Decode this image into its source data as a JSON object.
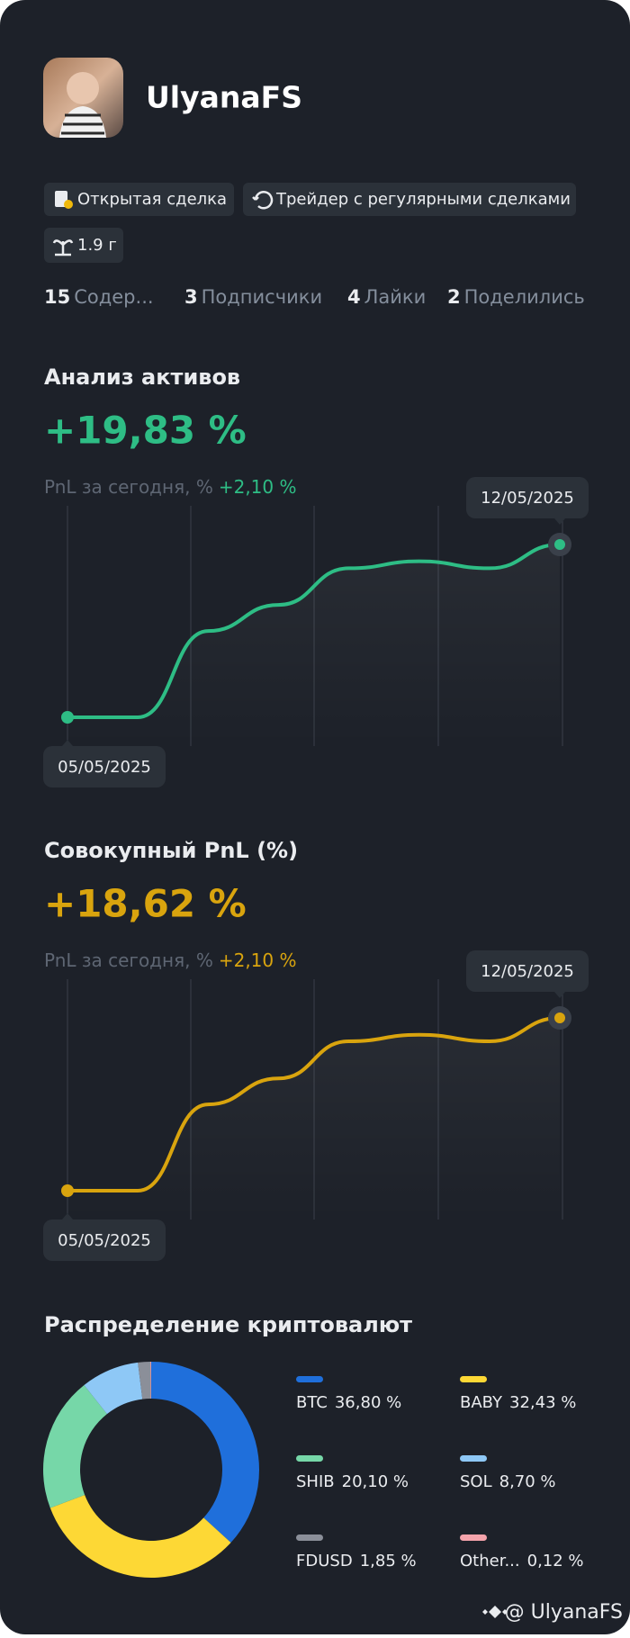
{
  "profile": {
    "name": "UlyanaFS"
  },
  "tags": [
    {
      "label": "Открытая сделка"
    },
    {
      "label": "Трейдер с регулярными сделками"
    },
    {
      "label": "1.9 г"
    }
  ],
  "stats": [
    {
      "count": "15",
      "label": "Содер..."
    },
    {
      "count": "3",
      "label": "Подписчики"
    },
    {
      "count": "4",
      "label": "Лайки"
    },
    {
      "count": "2",
      "label": "Поделились"
    }
  ],
  "chart_data": [
    {
      "type": "line",
      "title": "Анализ активов",
      "headline": "+19,83 %",
      "subtitle": "PnL за сегодня, %",
      "subtitle_value": "+2,10 %",
      "x": [
        "05/05/2025",
        null,
        null,
        null,
        null,
        null,
        null,
        "12/05/2025"
      ],
      "series": [
        {
          "color": "#2ebd85",
          "values": [
            0,
            0,
            9.9,
            12.9,
            17.1,
            17.9,
            17.1,
            19.83
          ]
        }
      ]
    },
    {
      "type": "line",
      "title": "Совокупный PnL (%)",
      "headline": "+18,62 %",
      "subtitle": "PnL за сегодня, %",
      "subtitle_value": "+2,10 %",
      "x": [
        "05/05/2025",
        null,
        null,
        null,
        null,
        null,
        null,
        "12/05/2025"
      ],
      "series": [
        {
          "color": "#d9a40e",
          "values": [
            0,
            0,
            9.3,
            12.1,
            16.1,
            16.8,
            16.1,
            18.62
          ]
        }
      ]
    },
    {
      "type": "donut",
      "title": "Распределение криптовалют",
      "categories": [
        "BTC",
        "BABY",
        "SHIB",
        "SOL",
        "FDUSD",
        "Other..."
      ],
      "values": [
        36.8,
        32.43,
        20.1,
        8.7,
        1.85,
        0.12
      ],
      "value_labels": [
        "36,80 %",
        "32,43 %",
        "20,10 %",
        "8,70 %",
        "1,85 %",
        "0,12 %"
      ],
      "colors": [
        "#1f6fdb",
        "#fdd835",
        "#76d7a8",
        "#8ec8f6",
        "#8b8f99",
        "#f4a3ab"
      ]
    }
  ],
  "footer": {
    "handle": "@ UlyanaFS"
  }
}
